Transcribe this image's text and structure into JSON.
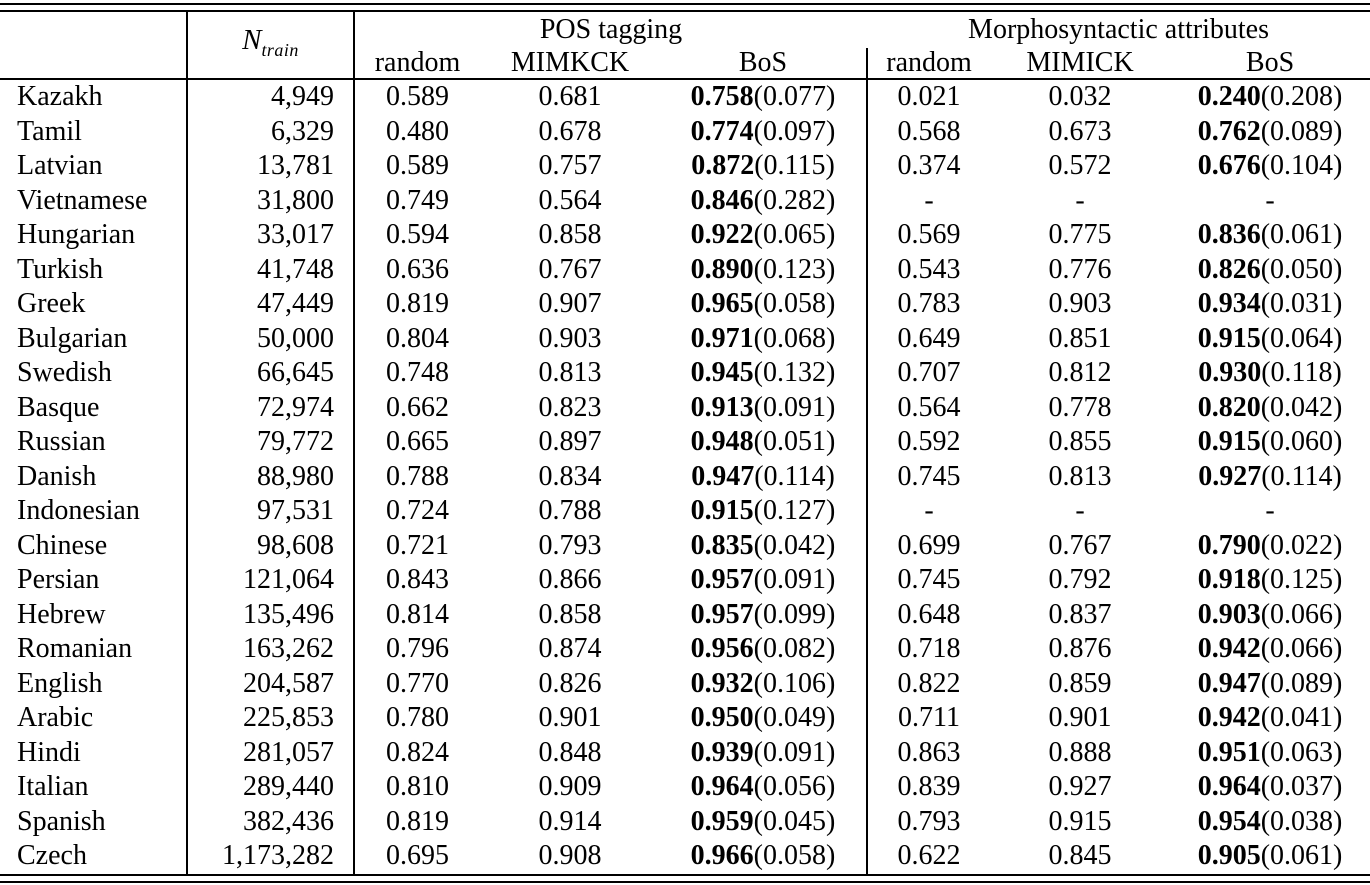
{
  "page": {
    "background": "#ffffff",
    "text_color": "#000000"
  },
  "table": {
    "header": {
      "ntrain_base": "N",
      "ntrain_sub": "train",
      "pos_group": "POS tagging",
      "morph_group": "Morphosyntactic attributes",
      "pos_subheaders": [
        "random",
        "MIMKCK",
        "BoS"
      ],
      "morph_subheaders": [
        "random",
        "MIMICK",
        "BoS"
      ]
    },
    "rows": [
      {
        "language": "Kazakh",
        "n_train": "4,949",
        "pos_random": "0.589",
        "pos_mimick": "0.681",
        "pos_bos": "0.758",
        "pos_bos_std": "(0.077)",
        "morph_random": "0.021",
        "morph_mimick": "0.032",
        "morph_bos": "0.240",
        "morph_bos_std": "(0.208)"
      },
      {
        "language": "Tamil",
        "n_train": "6,329",
        "pos_random": "0.480",
        "pos_mimick": "0.678",
        "pos_bos": "0.774",
        "pos_bos_std": "(0.097)",
        "morph_random": "0.568",
        "morph_mimick": "0.673",
        "morph_bos": "0.762",
        "morph_bos_std": "(0.089)"
      },
      {
        "language": "Latvian",
        "n_train": "13,781",
        "pos_random": "0.589",
        "pos_mimick": "0.757",
        "pos_bos": "0.872",
        "pos_bos_std": "(0.115)",
        "morph_random": "0.374",
        "morph_mimick": "0.572",
        "morph_bos": "0.676",
        "morph_bos_std": "(0.104)"
      },
      {
        "language": "Vietnamese",
        "n_train": "31,800",
        "pos_random": "0.749",
        "pos_mimick": "0.564",
        "pos_bos": "0.846",
        "pos_bos_std": "(0.282)",
        "morph_random": "-",
        "morph_mimick": "-",
        "morph_bos": "-",
        "morph_bos_std": ""
      },
      {
        "language": "Hungarian",
        "n_train": "33,017",
        "pos_random": "0.594",
        "pos_mimick": "0.858",
        "pos_bos": "0.922",
        "pos_bos_std": "(0.065)",
        "morph_random": "0.569",
        "morph_mimick": "0.775",
        "morph_bos": "0.836",
        "morph_bos_std": "(0.061)"
      },
      {
        "language": "Turkish",
        "n_train": "41,748",
        "pos_random": "0.636",
        "pos_mimick": "0.767",
        "pos_bos": "0.890",
        "pos_bos_std": "(0.123)",
        "morph_random": "0.543",
        "morph_mimick": "0.776",
        "morph_bos": "0.826",
        "morph_bos_std": "(0.050)"
      },
      {
        "language": "Greek",
        "n_train": "47,449",
        "pos_random": "0.819",
        "pos_mimick": "0.907",
        "pos_bos": "0.965",
        "pos_bos_std": "(0.058)",
        "morph_random": "0.783",
        "morph_mimick": "0.903",
        "morph_bos": "0.934",
        "morph_bos_std": "(0.031)"
      },
      {
        "language": "Bulgarian",
        "n_train": "50,000",
        "pos_random": "0.804",
        "pos_mimick": "0.903",
        "pos_bos": "0.971",
        "pos_bos_std": "(0.068)",
        "morph_random": "0.649",
        "morph_mimick": "0.851",
        "morph_bos": "0.915",
        "morph_bos_std": "(0.064)"
      },
      {
        "language": "Swedish",
        "n_train": "66,645",
        "pos_random": "0.748",
        "pos_mimick": "0.813",
        "pos_bos": "0.945",
        "pos_bos_std": "(0.132)",
        "morph_random": "0.707",
        "morph_mimick": "0.812",
        "morph_bos": "0.930",
        "morph_bos_std": "(0.118)"
      },
      {
        "language": "Basque",
        "n_train": "72,974",
        "pos_random": "0.662",
        "pos_mimick": "0.823",
        "pos_bos": "0.913",
        "pos_bos_std": "(0.091)",
        "morph_random": "0.564",
        "morph_mimick": "0.778",
        "morph_bos": "0.820",
        "morph_bos_std": "(0.042)"
      },
      {
        "language": "Russian",
        "n_train": "79,772",
        "pos_random": "0.665",
        "pos_mimick": "0.897",
        "pos_bos": "0.948",
        "pos_bos_std": "(0.051)",
        "morph_random": "0.592",
        "morph_mimick": "0.855",
        "morph_bos": "0.915",
        "morph_bos_std": "(0.060)"
      },
      {
        "language": "Danish",
        "n_train": "88,980",
        "pos_random": "0.788",
        "pos_mimick": "0.834",
        "pos_bos": "0.947",
        "pos_bos_std": "(0.114)",
        "morph_random": "0.745",
        "morph_mimick": "0.813",
        "morph_bos": "0.927",
        "morph_bos_std": "(0.114)"
      },
      {
        "language": "Indonesian",
        "n_train": "97,531",
        "pos_random": "0.724",
        "pos_mimick": "0.788",
        "pos_bos": "0.915",
        "pos_bos_std": "(0.127)",
        "morph_random": "-",
        "morph_mimick": "-",
        "morph_bos": "-",
        "morph_bos_std": ""
      },
      {
        "language": "Chinese",
        "n_train": "98,608",
        "pos_random": "0.721",
        "pos_mimick": "0.793",
        "pos_bos": "0.835",
        "pos_bos_std": "(0.042)",
        "morph_random": "0.699",
        "morph_mimick": "0.767",
        "morph_bos": "0.790",
        "morph_bos_std": "(0.022)"
      },
      {
        "language": "Persian",
        "n_train": "121,064",
        "pos_random": "0.843",
        "pos_mimick": "0.866",
        "pos_bos": "0.957",
        "pos_bos_std": "(0.091)",
        "morph_random": "0.745",
        "morph_mimick": "0.792",
        "morph_bos": "0.918",
        "morph_bos_std": "(0.125)"
      },
      {
        "language": "Hebrew",
        "n_train": "135,496",
        "pos_random": "0.814",
        "pos_mimick": "0.858",
        "pos_bos": "0.957",
        "pos_bos_std": "(0.099)",
        "morph_random": "0.648",
        "morph_mimick": "0.837",
        "morph_bos": "0.903",
        "morph_bos_std": "(0.066)"
      },
      {
        "language": "Romanian",
        "n_train": "163,262",
        "pos_random": "0.796",
        "pos_mimick": "0.874",
        "pos_bos": "0.956",
        "pos_bos_std": "(0.082)",
        "morph_random": "0.718",
        "morph_mimick": "0.876",
        "morph_bos": "0.942",
        "morph_bos_std": "(0.066)"
      },
      {
        "language": "English",
        "n_train": "204,587",
        "pos_random": "0.770",
        "pos_mimick": "0.826",
        "pos_bos": "0.932",
        "pos_bos_std": "(0.106)",
        "morph_random": "0.822",
        "morph_mimick": "0.859",
        "morph_bos": "0.947",
        "morph_bos_std": "(0.089)"
      },
      {
        "language": "Arabic",
        "n_train": "225,853",
        "pos_random": "0.780",
        "pos_mimick": "0.901",
        "pos_bos": "0.950",
        "pos_bos_std": "(0.049)",
        "morph_random": "0.711",
        "morph_mimick": "0.901",
        "morph_bos": "0.942",
        "morph_bos_std": "(0.041)"
      },
      {
        "language": "Hindi",
        "n_train": "281,057",
        "pos_random": "0.824",
        "pos_mimick": "0.848",
        "pos_bos": "0.939",
        "pos_bos_std": "(0.091)",
        "morph_random": "0.863",
        "morph_mimick": "0.888",
        "morph_bos": "0.951",
        "morph_bos_std": "(0.063)"
      },
      {
        "language": "Italian",
        "n_train": "289,440",
        "pos_random": "0.810",
        "pos_mimick": "0.909",
        "pos_bos": "0.964",
        "pos_bos_std": "(0.056)",
        "morph_random": "0.839",
        "morph_mimick": "0.927",
        "morph_bos": "0.964",
        "morph_bos_std": "(0.037)"
      },
      {
        "language": "Spanish",
        "n_train": "382,436",
        "pos_random": "0.819",
        "pos_mimick": "0.914",
        "pos_bos": "0.959",
        "pos_bos_std": "(0.045)",
        "morph_random": "0.793",
        "morph_mimick": "0.915",
        "morph_bos": "0.954",
        "morph_bos_std": "(0.038)"
      },
      {
        "language": "Czech",
        "n_train": "1,173,282",
        "pos_random": "0.695",
        "pos_mimick": "0.908",
        "pos_bos": "0.966",
        "pos_bos_std": "(0.058)",
        "morph_random": "0.622",
        "morph_mimick": "0.845",
        "morph_bos": "0.905",
        "morph_bos_std": "(0.061)"
      }
    ]
  }
}
